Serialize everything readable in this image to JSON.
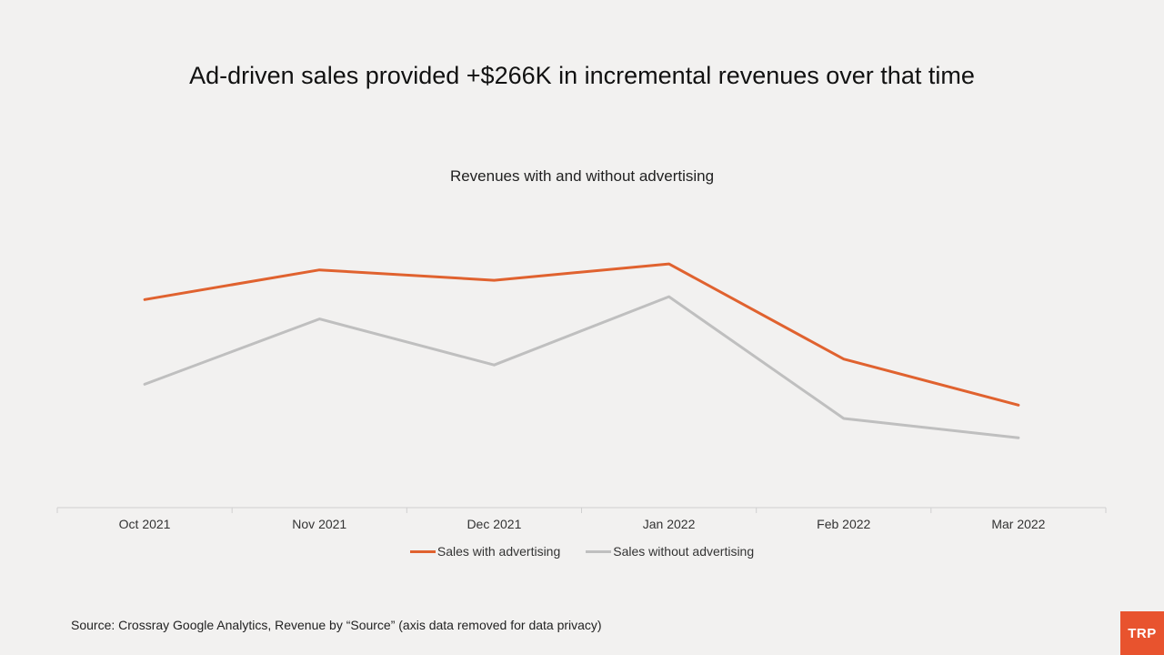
{
  "headline": "Ad-driven sales provided +$266K in incremental revenues over that time",
  "source": "Source: Crossray Google Analytics, Revenue by “Source” (axis data removed for data privacy)",
  "logo": "TRP",
  "colors": {
    "with_ads": "#e0622f",
    "without_ads": "#bfbfbf",
    "axis": "#d0d0d0",
    "logo": "#e8532e"
  },
  "chart_data": {
    "type": "line",
    "title": "Revenues with and without advertising",
    "categories": [
      "Oct 2021",
      "Nov 2021",
      "Dec 2021",
      "Jan 2022",
      "Feb 2022",
      "Mar 2022"
    ],
    "series": [
      {
        "name": "Sales with advertising",
        "values": [
          70,
          80,
          76.5,
          82,
          50,
          34.5
        ]
      },
      {
        "name": "Sales without advertising",
        "values": [
          41.5,
          63.5,
          48,
          71,
          30,
          23.5
        ]
      }
    ],
    "ylim": [
      0,
      105
    ],
    "xlabel": "",
    "ylabel": "",
    "legend": "bottom",
    "grid": false
  }
}
